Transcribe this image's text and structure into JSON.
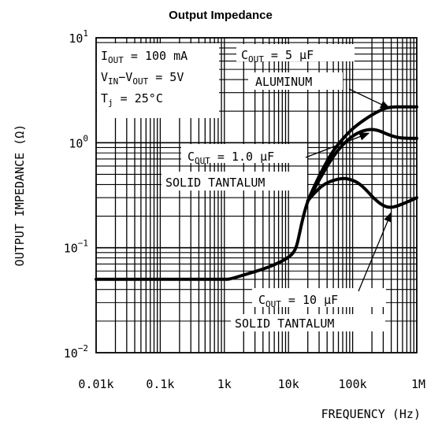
{
  "chart_data": {
    "type": "line",
    "title": "Output Impedance",
    "xlabel": "FREQUENCY (Hz)",
    "ylabel": "OUTPUT IMPEDANCE (Ω)",
    "x_scale": "log",
    "y_scale": "log",
    "xlim": [
      10,
      1000000
    ],
    "ylim": [
      0.01,
      10
    ],
    "x_tick_labels": [
      "0.01k",
      "0.1k",
      "1k",
      "10k",
      "100k",
      "1M"
    ],
    "y_ticks": [
      {
        "base": "10",
        "exp": "1"
      },
      {
        "base": "10",
        "exp": "0"
      },
      {
        "base": "10",
        "exp": "−1"
      },
      {
        "base": "10",
        "exp": "−2"
      }
    ],
    "conditions": [
      {
        "main": "I",
        "sub": "OUT",
        "rest": " = 100 mA"
      },
      {
        "main": "V",
        "sub": "IN",
        "mid": "−V",
        "sub2": "OUT",
        "rest": " = 5V"
      },
      {
        "main": "T",
        "sub": "j",
        "rest": " = 25°C"
      }
    ],
    "series": [
      {
        "name_main": "C",
        "name_sub": "OUT",
        "name_rest": " = 5 µF",
        "name_line2": "ALUMINUM",
        "x": [
          10,
          1000,
          1200,
          2000,
          5000,
          10000,
          13000,
          15000,
          17000,
          20000,
          25000,
          35000,
          50000,
          80000,
          120000,
          200000,
          300000,
          400000,
          600000,
          1000000
        ],
        "y": [
          0.05,
          0.05,
          0.05,
          0.055,
          0.065,
          0.08,
          0.095,
          0.14,
          0.2,
          0.28,
          0.38,
          0.58,
          0.85,
          1.2,
          1.5,
          1.85,
          2.1,
          2.2,
          2.2,
          2.2
        ]
      },
      {
        "name_main": "C",
        "name_sub": "OUT",
        "name_rest": " = 1.0 µF",
        "name_line2": "SOLID TANTALUM",
        "x": [
          20000,
          25000,
          35000,
          50000,
          80000,
          120000,
          180000,
          250000,
          350000,
          500000,
          700000,
          1000000
        ],
        "y": [
          0.28,
          0.36,
          0.52,
          0.75,
          1.05,
          1.25,
          1.35,
          1.32,
          1.2,
          1.12,
          1.1,
          1.1
        ]
      },
      {
        "name_main": "C",
        "name_sub": "OUT",
        "name_rest": " = 10 µF",
        "name_line2": "SOLID TANTALUM",
        "x": [
          20000,
          25000,
          35000,
          50000,
          70000,
          90000,
          120000,
          160000,
          220000,
          300000,
          400000,
          600000,
          1000000
        ],
        "y": [
          0.28,
          0.33,
          0.4,
          0.44,
          0.46,
          0.45,
          0.42,
          0.36,
          0.29,
          0.25,
          0.24,
          0.26,
          0.3
        ]
      }
    ]
  }
}
